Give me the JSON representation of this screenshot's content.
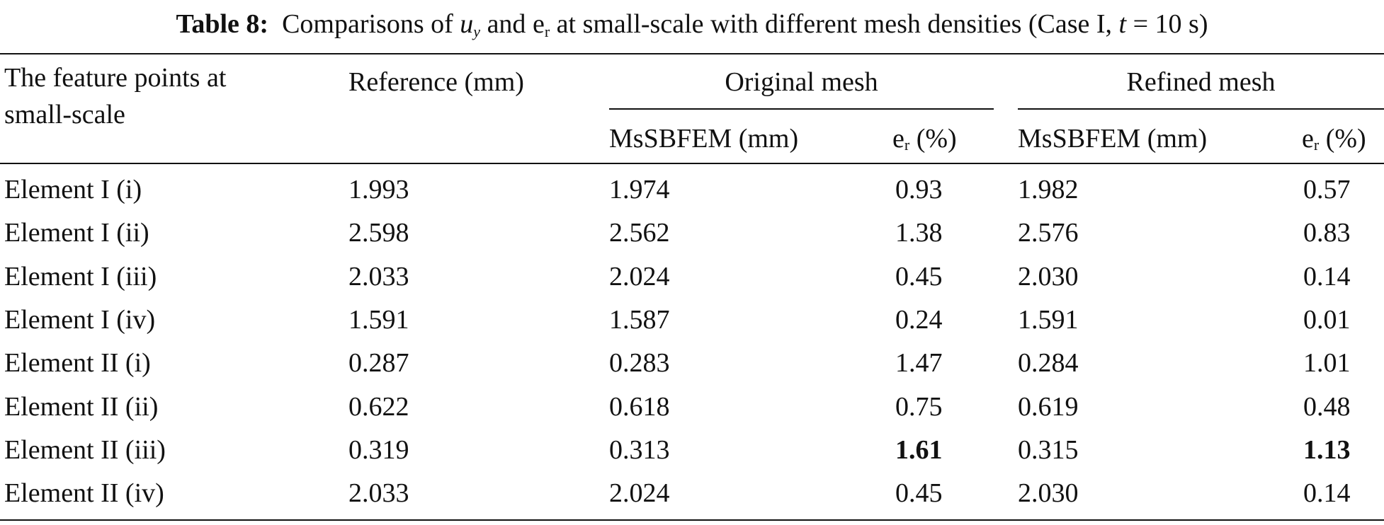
{
  "caption": {
    "label": "Table 8:",
    "part1": "Comparisons of",
    "var_u": "u",
    "sub_y": "y",
    "part2": "and",
    "var_e": "e",
    "sub_r": "r",
    "part3": "at small-scale with different mesh densities (Case I,",
    "var_t": "t",
    "part4": "= 10 s)"
  },
  "header": {
    "col1_line1": "The feature points at",
    "col1_line2": "small-scale",
    "reference": "Reference (mm)",
    "group_original": "Original mesh",
    "group_refined": "Refined mesh",
    "msbfem": "MsSBFEM (mm)",
    "er_e": "e",
    "er_sub": "r",
    "er_unit": "(%)"
  },
  "rows": [
    {
      "point": "Element I (i)",
      "reference": "1.993",
      "orig_ms": "1.974",
      "orig_er": "0.93",
      "ref_ms": "1.982",
      "ref_er": "0.57"
    },
    {
      "point": "Element I (ii)",
      "reference": "2.598",
      "orig_ms": "2.562",
      "orig_er": "1.38",
      "ref_ms": "2.576",
      "ref_er": "0.83"
    },
    {
      "point": "Element I (iii)",
      "reference": "2.033",
      "orig_ms": "2.024",
      "orig_er": "0.45",
      "ref_ms": "2.030",
      "ref_er": "0.14"
    },
    {
      "point": "Element I (iv)",
      "reference": "1.591",
      "orig_ms": "1.587",
      "orig_er": "0.24",
      "ref_ms": "1.591",
      "ref_er": "0.01"
    },
    {
      "point": "Element II (i)",
      "reference": "0.287",
      "orig_ms": "0.283",
      "orig_er": "1.47",
      "ref_ms": "0.284",
      "ref_er": "1.01"
    },
    {
      "point": "Element II (ii)",
      "reference": "0.622",
      "orig_ms": "0.618",
      "orig_er": "0.75",
      "ref_ms": "0.619",
      "ref_er": "0.48"
    },
    {
      "point": "Element II (iii)",
      "reference": "0.319",
      "orig_ms": "0.313",
      "orig_er": "1.61",
      "ref_ms": "0.315",
      "ref_er": "1.13",
      "bold_er": true
    },
    {
      "point": "Element II (iv)",
      "reference": "2.033",
      "orig_ms": "2.024",
      "orig_er": "0.45",
      "ref_ms": "2.030",
      "ref_er": "0.14"
    }
  ]
}
